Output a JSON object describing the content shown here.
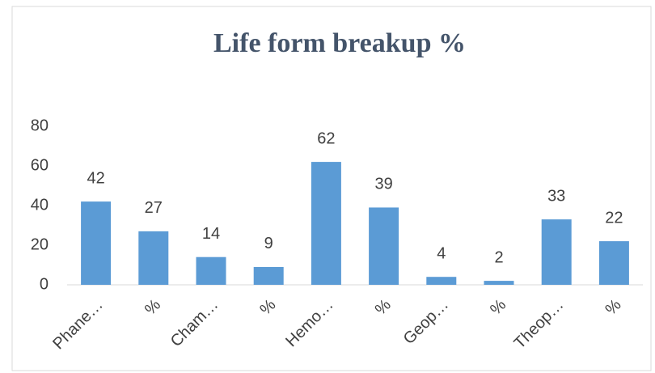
{
  "chart_data": {
    "type": "bar",
    "title": "Life form breakup %",
    "categories": [
      "Phane…",
      "%",
      "Cham…",
      "%",
      "Hemo…",
      "%",
      "Geop…",
      "%",
      "Theop…",
      "%"
    ],
    "values": [
      42,
      27,
      14,
      9,
      62,
      39,
      4,
      2,
      33,
      22
    ],
    "color": "#5b9bd5",
    "ylim": [
      0,
      80
    ],
    "yticks": [
      0,
      20,
      40,
      60,
      80
    ],
    "grid": false
  }
}
